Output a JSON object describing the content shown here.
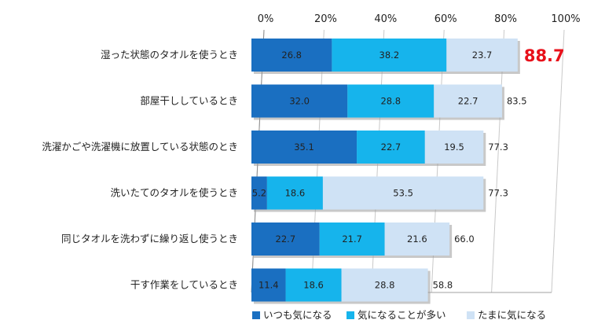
{
  "chart_data": {
    "type": "bar",
    "orientation": "horizontal",
    "stacked": true,
    "categories": [
      "湿った状態のタオルを使うとき",
      "部屋干ししているとき",
      "洗濯かごや洗濯機に放置している状態のとき",
      "洗いたてのタオルを使うとき",
      "同じタオルを洗わずに繰り返し使うとき",
      "干す作業をしているとき"
    ],
    "series": [
      {
        "name": "いつも気になる",
        "color": "#1a6fc1",
        "values": [
          26.8,
          32.0,
          35.1,
          5.2,
          22.7,
          11.4
        ],
        "labels": [
          "26.8",
          "32.0",
          "35.1",
          "5.2",
          "22.7",
          "11.4"
        ]
      },
      {
        "name": "気になることが多い",
        "color": "#16b4ec",
        "values": [
          38.2,
          28.8,
          22.7,
          18.6,
          21.7,
          18.6
        ],
        "labels": [
          "38.2",
          "28.8",
          "22.7",
          "18.6",
          "21.7",
          "18.6"
        ]
      },
      {
        "name": "たまに気になる",
        "color": "#cfe2f5",
        "values": [
          23.7,
          22.7,
          19.5,
          53.5,
          21.6,
          28.8
        ],
        "labels": [
          "23.7",
          "22.7",
          "19.5",
          "53.5",
          "21.6",
          "28.8"
        ]
      }
    ],
    "totals": [
      88.7,
      83.5,
      77.3,
      77.3,
      66.0,
      58.8
    ],
    "total_labels": [
      "88.7",
      "83.5",
      "77.3",
      "77.3",
      "66.0",
      "58.8"
    ],
    "highlight_total_index": 0,
    "highlight_color": "#e8101a",
    "xlim": [
      0,
      100
    ],
    "xticks": [
      0,
      20,
      40,
      60,
      80,
      100
    ],
    "xtick_labels": [
      "0%",
      "20%",
      "40%",
      "60%",
      "80%",
      "100%"
    ],
    "grid": true,
    "legend_position": "bottom",
    "title": "",
    "xlabel": "",
    "ylabel": ""
  }
}
